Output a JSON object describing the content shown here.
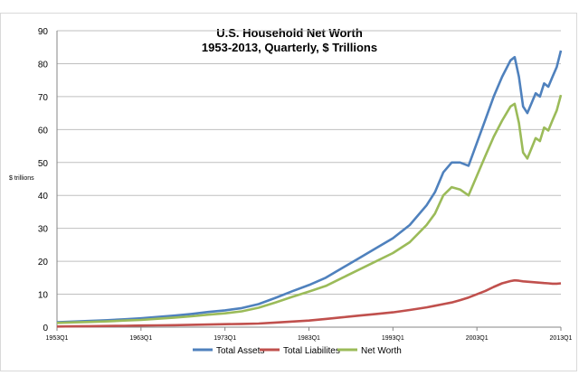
{
  "chart_data": {
    "type": "line",
    "title": "U.S. Household Net Worth",
    "subtitle": "1953-2013, Quarterly, $ Trillions",
    "ylabel": "$ trillions",
    "xlabel": "",
    "ylim": [
      0,
      90
    ],
    "yticks": [
      0,
      10,
      20,
      30,
      40,
      50,
      60,
      70,
      80,
      90
    ],
    "xticks": [
      "1953Q1",
      "1963Q1",
      "1973Q1",
      "1983Q1",
      "1993Q1",
      "2003Q1",
      "2013Q1"
    ],
    "xlim": [
      1953.0,
      2013.0
    ],
    "grid": true,
    "legend_position": "bottom",
    "x": [
      1953,
      1955,
      1957,
      1959,
      1961,
      1963,
      1965,
      1967,
      1969,
      1971,
      1973,
      1975,
      1977,
      1979,
      1981,
      1983,
      1985,
      1987,
      1989,
      1991,
      1993,
      1995,
      1997,
      1998,
      1999,
      2000,
      2001,
      2002,
      2003,
      2004,
      2005,
      2006,
      2007,
      2007.5,
      2008,
      2008.5,
      2009,
      2009.5,
      2010,
      2010.5,
      2011,
      2011.5,
      2012,
      2012.5,
      2013
    ],
    "series": [
      {
        "name": "Total Assets",
        "color": "#4f81bd",
        "values": [
          1.5,
          1.7,
          1.9,
          2.1,
          2.4,
          2.7,
          3.1,
          3.5,
          4.0,
          4.6,
          5.1,
          5.8,
          7.0,
          8.9,
          10.9,
          12.8,
          15.0,
          18.0,
          21.0,
          24.0,
          27.0,
          31.0,
          37.0,
          41.0,
          47.0,
          50.0,
          50.0,
          49.0,
          56.0,
          63.0,
          70.0,
          76.0,
          81.0,
          82.0,
          76.0,
          67.0,
          65.0,
          68.0,
          71.0,
          70.0,
          74.0,
          73.0,
          76.0,
          79.0,
          84.0
        ]
      },
      {
        "name": "Total Liabilites",
        "color": "#c0504d",
        "values": [
          0.2,
          0.25,
          0.3,
          0.35,
          0.4,
          0.5,
          0.55,
          0.6,
          0.7,
          0.8,
          0.9,
          1.0,
          1.1,
          1.4,
          1.7,
          2.0,
          2.5,
          3.0,
          3.5,
          4.0,
          4.5,
          5.2,
          6.0,
          6.5,
          7.0,
          7.5,
          8.2,
          9.0,
          10.0,
          11.0,
          12.2,
          13.3,
          14.0,
          14.2,
          14.1,
          13.9,
          13.8,
          13.7,
          13.6,
          13.5,
          13.4,
          13.3,
          13.2,
          13.2,
          13.3
        ]
      },
      {
        "name": "Net Worth",
        "color": "#9bbb59",
        "values": [
          1.3,
          1.45,
          1.6,
          1.75,
          2.0,
          2.2,
          2.55,
          2.9,
          3.3,
          3.8,
          4.2,
          4.8,
          5.9,
          7.5,
          9.2,
          10.8,
          12.5,
          15.0,
          17.5,
          20.0,
          22.5,
          25.8,
          31.0,
          34.5,
          40.0,
          42.5,
          41.8,
          40.0,
          46.0,
          52.0,
          57.8,
          62.7,
          67.0,
          67.8,
          62.0,
          53.0,
          51.2,
          54.3,
          57.4,
          56.5,
          60.6,
          59.7,
          62.8,
          65.8,
          70.5
        ]
      }
    ]
  }
}
